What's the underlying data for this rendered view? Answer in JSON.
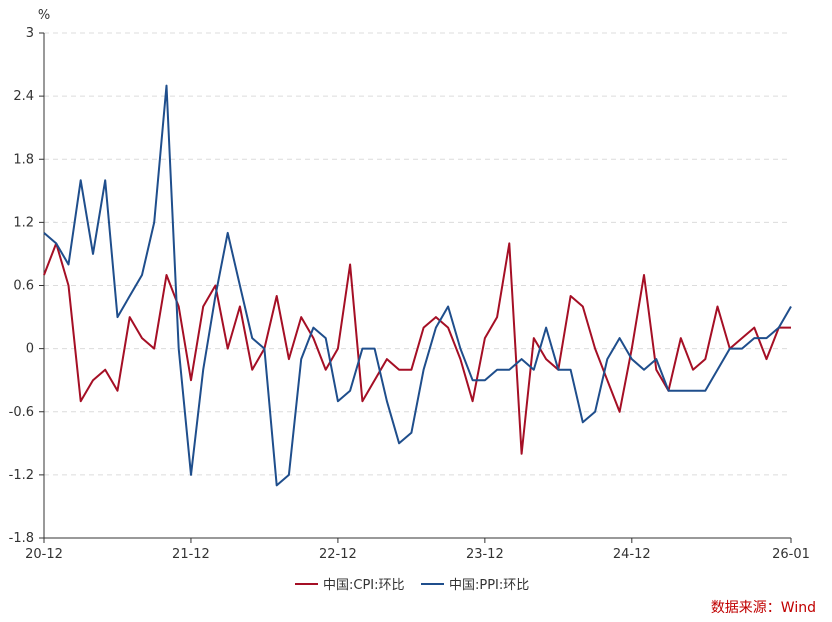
{
  "chart_data": {
    "type": "line",
    "y_unit": "%",
    "ylim": [
      -1.8,
      3
    ],
    "y_ticks": [
      3,
      2.4,
      1.8,
      1.2,
      0.6,
      0,
      -0.6,
      -1.2,
      -1.8
    ],
    "y_tick_labels": [
      "3",
      "2.4",
      "1.8",
      "1.2",
      "0.6",
      "0",
      "-0.6",
      "-1.2",
      "-1.8"
    ],
    "x_start": "2020-12",
    "x_end": "2026-01",
    "x_ticks": [
      {
        "month": "2020-12",
        "label": "20-12"
      },
      {
        "month": "2021-12",
        "label": "21-12"
      },
      {
        "month": "2022-12",
        "label": "22-12"
      },
      {
        "month": "2023-12",
        "label": "23-12"
      },
      {
        "month": "2024-12",
        "label": "24-12"
      },
      {
        "month": "2026-01",
        "label": "26-01"
      }
    ],
    "grid": "horizontal-dashed",
    "legend_position": "bottom-center",
    "x": [
      "2020-12",
      "2021-01",
      "2021-02",
      "2021-03",
      "2021-04",
      "2021-05",
      "2021-06",
      "2021-07",
      "2021-08",
      "2021-09",
      "2021-10",
      "2021-11",
      "2021-12",
      "2022-01",
      "2022-02",
      "2022-03",
      "2022-04",
      "2022-05",
      "2022-06",
      "2022-07",
      "2022-08",
      "2022-09",
      "2022-10",
      "2022-11",
      "2022-12",
      "2023-01",
      "2023-02",
      "2023-03",
      "2023-04",
      "2023-05",
      "2023-06",
      "2023-07",
      "2023-08",
      "2023-09",
      "2023-10",
      "2023-11",
      "2023-12",
      "2024-01",
      "2024-02",
      "2024-03",
      "2024-04",
      "2024-05",
      "2024-06",
      "2024-07",
      "2024-08",
      "2024-09",
      "2024-10",
      "2024-11",
      "2024-12",
      "2025-01",
      "2025-02",
      "2025-03",
      "2025-04",
      "2025-05",
      "2025-06",
      "2025-07",
      "2025-08",
      "2025-09",
      "2025-10",
      "2025-11",
      "2025-12",
      "2026-01"
    ],
    "series": [
      {
        "name": "中国:CPI:环比",
        "color": "#a50f25",
        "values": [
          0.7,
          1.0,
          0.6,
          -0.5,
          -0.3,
          -0.2,
          -0.4,
          0.3,
          0.1,
          0.0,
          0.7,
          0.4,
          -0.3,
          0.4,
          0.6,
          0.0,
          0.4,
          -0.2,
          0.0,
          0.5,
          -0.1,
          0.3,
          0.1,
          -0.2,
          0.0,
          0.8,
          -0.5,
          -0.3,
          -0.1,
          -0.2,
          -0.2,
          0.2,
          0.3,
          0.2,
          -0.1,
          -0.5,
          0.1,
          0.3,
          1.0,
          -1.0,
          0.1,
          -0.1,
          -0.2,
          0.5,
          0.4,
          0.0,
          -0.3,
          -0.6,
          0.0,
          0.7,
          -0.2,
          -0.4,
          0.1,
          -0.2,
          -0.1,
          0.4,
          0.0,
          0.1,
          0.2,
          -0.1,
          0.2,
          0.2
        ]
      },
      {
        "name": "中国:PPI:环比",
        "color": "#1f4e8c",
        "values": [
          1.1,
          1.0,
          0.8,
          1.6,
          0.9,
          1.6,
          0.3,
          0.5,
          0.7,
          1.2,
          2.5,
          0.0,
          -1.2,
          -0.2,
          0.5,
          1.1,
          0.6,
          0.1,
          0.0,
          -1.3,
          -1.2,
          -0.1,
          0.2,
          0.1,
          -0.5,
          -0.4,
          0.0,
          0.0,
          -0.5,
          -0.9,
          -0.8,
          -0.2,
          0.2,
          0.4,
          0.0,
          -0.3,
          -0.3,
          -0.2,
          -0.2,
          -0.1,
          -0.2,
          0.2,
          -0.2,
          -0.2,
          -0.7,
          -0.6,
          -0.1,
          0.1,
          -0.1,
          -0.2,
          -0.1,
          -0.4,
          -0.4,
          -0.4,
          -0.4,
          -0.2,
          0.0,
          0.0,
          0.1,
          0.1,
          0.2,
          0.4
        ]
      }
    ]
  },
  "source": "数据来源：Wind"
}
